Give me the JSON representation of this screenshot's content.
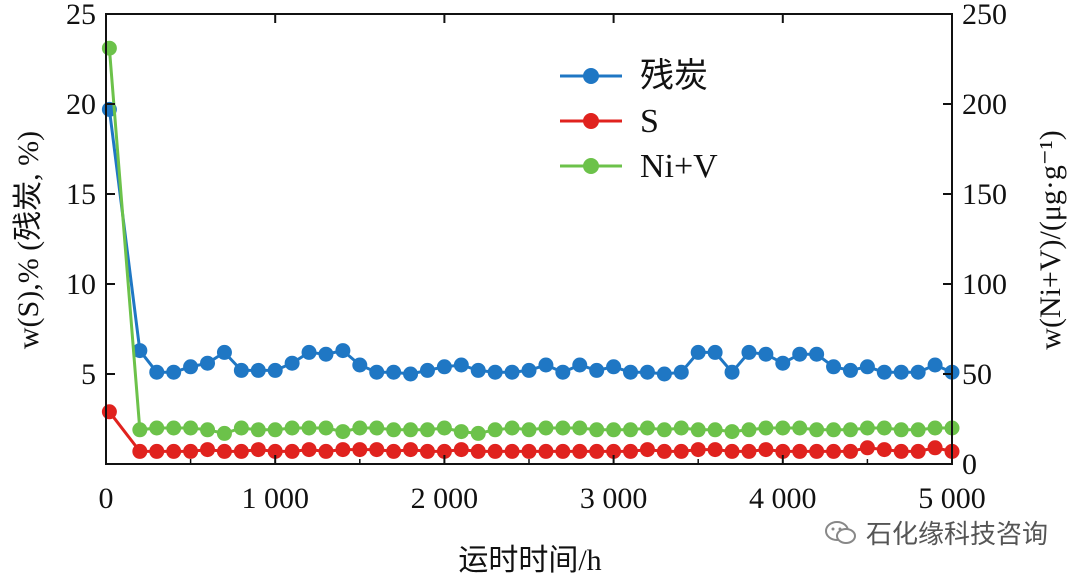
{
  "chart_data": {
    "type": "line",
    "xlabel": "运时时间/h",
    "ylabel_left": "w(S),% (残炭, %)",
    "ylabel_right": "w(Ni+V)/(μg·g⁻¹)",
    "xlim": [
      0,
      5000
    ],
    "ylim_left": [
      0,
      25
    ],
    "ylim_right": [
      0,
      250
    ],
    "x_ticks": [
      0,
      1000,
      2000,
      3000,
      4000,
      5000
    ],
    "x_tick_labels": [
      "0",
      "1 000",
      "2 000",
      "3 000",
      "4 000",
      "5 000"
    ],
    "y_left_ticks": [
      5,
      10,
      15,
      20,
      25
    ],
    "y_left_tick_labels": [
      "5",
      "10",
      "15",
      "20",
      "25"
    ],
    "y_right_ticks": [
      0,
      50,
      100,
      150,
      200,
      250
    ],
    "y_right_tick_labels": [
      "0",
      "50",
      "100",
      "150",
      "200",
      "250"
    ],
    "x": [
      20,
      200,
      300,
      400,
      500,
      600,
      700,
      800,
      900,
      1000,
      1100,
      1200,
      1300,
      1400,
      1500,
      1600,
      1700,
      1800,
      1900,
      2000,
      2100,
      2200,
      2300,
      2400,
      2500,
      2600,
      2700,
      2800,
      2900,
      3000,
      3100,
      3200,
      3300,
      3400,
      3500,
      3600,
      3700,
      3800,
      3900,
      4000,
      4100,
      4200,
      4300,
      4400,
      4500,
      4600,
      4700,
      4800,
      4900,
      5000
    ],
    "series": [
      {
        "name": "残炭",
        "color": "#1f77c4",
        "axis": "left",
        "values": [
          19.7,
          6.3,
          5.1,
          5.1,
          5.4,
          5.6,
          6.2,
          5.2,
          5.2,
          5.2,
          5.6,
          6.2,
          6.1,
          6.3,
          5.5,
          5.1,
          5.1,
          5.0,
          5.2,
          5.4,
          5.5,
          5.2,
          5.1,
          5.1,
          5.2,
          5.5,
          5.1,
          5.5,
          5.2,
          5.4,
          5.1,
          5.1,
          5.0,
          5.1,
          6.2,
          6.2,
          5.1,
          6.2,
          6.1,
          5.6,
          6.1,
          6.1,
          5.4,
          5.2,
          5.4,
          5.1,
          5.1,
          5.1,
          5.5,
          5.1
        ]
      },
      {
        "name": "S",
        "color": "#e0221e",
        "axis": "left",
        "values": [
          2.9,
          0.7,
          0.7,
          0.7,
          0.7,
          0.8,
          0.7,
          0.7,
          0.8,
          0.7,
          0.7,
          0.8,
          0.7,
          0.8,
          0.8,
          0.8,
          0.7,
          0.8,
          0.7,
          0.7,
          0.8,
          0.7,
          0.7,
          0.7,
          0.7,
          0.7,
          0.7,
          0.7,
          0.7,
          0.7,
          0.7,
          0.8,
          0.7,
          0.7,
          0.8,
          0.8,
          0.7,
          0.7,
          0.8,
          0.7,
          0.7,
          0.7,
          0.7,
          0.7,
          0.9,
          0.8,
          0.7,
          0.7,
          0.9,
          0.7
        ]
      },
      {
        "name": "Ni+V",
        "color": "#6cc24a",
        "axis": "right",
        "values": [
          231,
          19,
          20,
          20,
          20,
          19,
          17,
          20,
          19,
          19,
          20,
          20,
          20,
          18,
          20,
          20,
          19,
          19,
          19,
          20,
          18,
          17,
          19,
          20,
          19,
          20,
          20,
          20,
          19,
          19,
          19,
          20,
          19,
          20,
          19,
          19,
          18,
          19,
          20,
          20,
          20,
          19,
          19,
          19,
          20,
          20,
          19,
          19,
          20,
          20
        ]
      }
    ],
    "legend": {
      "position": "top-center",
      "entries": [
        "残炭",
        "S",
        "Ni+V"
      ]
    }
  },
  "watermark": {
    "text": "石化缘科技咨询",
    "icon": "wechat-icon"
  }
}
